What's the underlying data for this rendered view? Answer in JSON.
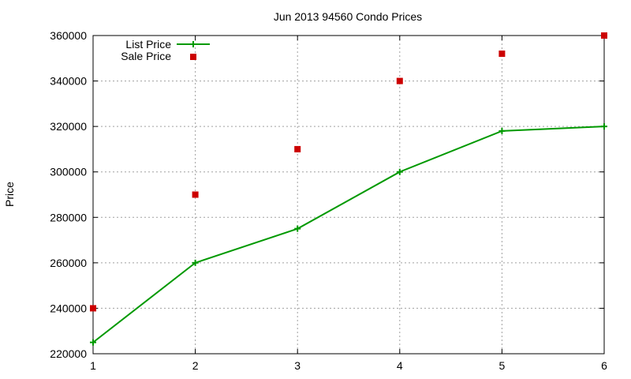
{
  "chart_data": {
    "type": "line",
    "title": "Jun 2013 94560 Condo Prices",
    "xlabel": "",
    "ylabel": "Price",
    "x": [
      1,
      2,
      3,
      4,
      5,
      6
    ],
    "xlim": [
      1,
      6
    ],
    "ylim": [
      220000,
      360000
    ],
    "xticks": [
      "1",
      "2",
      "3",
      "4",
      "5",
      "6"
    ],
    "yticks": [
      "220000",
      "240000",
      "260000",
      "280000",
      "300000",
      "320000",
      "340000",
      "360000"
    ],
    "grid": true,
    "legend_position": "top-left",
    "series": [
      {
        "name": "List Price",
        "style": "line-with-plus-markers",
        "color": "#009900",
        "values": [
          225000,
          260000,
          275000,
          300000,
          318000,
          320000
        ]
      },
      {
        "name": "Sale Price",
        "style": "square-markers",
        "color": "#cc0000",
        "values": [
          240000,
          290000,
          310000,
          340000,
          352000,
          360000
        ]
      }
    ]
  }
}
